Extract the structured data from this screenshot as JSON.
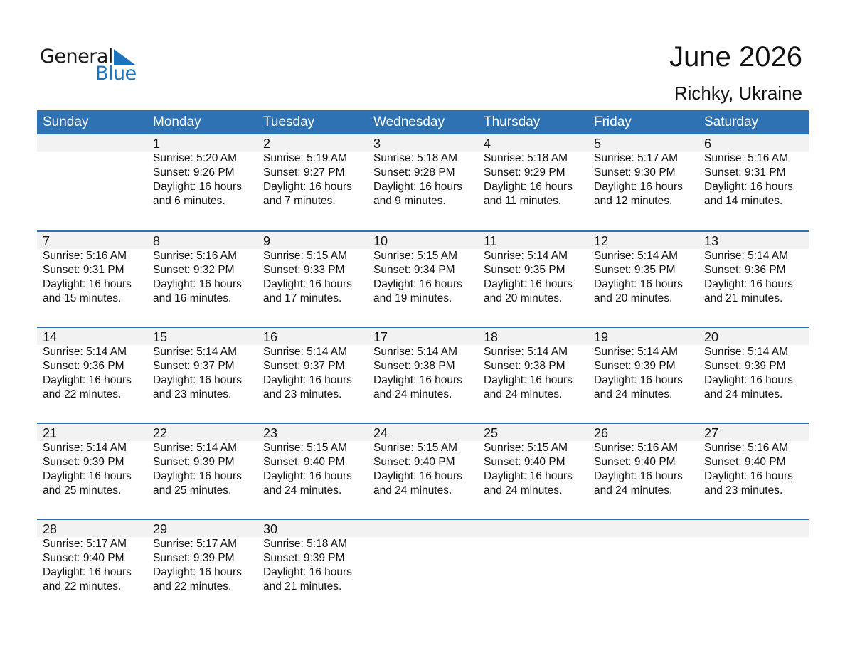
{
  "logo": {
    "general": "General",
    "blue": "Blue"
  },
  "title": "June 2026",
  "location": "Richky, Ukraine",
  "colors": {
    "header": "#2e72b4",
    "band": "#f2f2f2",
    "logo_blue": "#1c74c0"
  },
  "weekdays": [
    "Sunday",
    "Monday",
    "Tuesday",
    "Wednesday",
    "Thursday",
    "Friday",
    "Saturday"
  ],
  "weeks": [
    [
      null,
      {
        "day": "1",
        "sunrise": "Sunrise: 5:20 AM",
        "sunset": "Sunset: 9:26 PM",
        "daylight": "Daylight: 16 hours",
        "minutes": "and 6 minutes."
      },
      {
        "day": "2",
        "sunrise": "Sunrise: 5:19 AM",
        "sunset": "Sunset: 9:27 PM",
        "daylight": "Daylight: 16 hours",
        "minutes": "and 7 minutes."
      },
      {
        "day": "3",
        "sunrise": "Sunrise: 5:18 AM",
        "sunset": "Sunset: 9:28 PM",
        "daylight": "Daylight: 16 hours",
        "minutes": "and 9 minutes."
      },
      {
        "day": "4",
        "sunrise": "Sunrise: 5:18 AM",
        "sunset": "Sunset: 9:29 PM",
        "daylight": "Daylight: 16 hours",
        "minutes": "and 11 minutes."
      },
      {
        "day": "5",
        "sunrise": "Sunrise: 5:17 AM",
        "sunset": "Sunset: 9:30 PM",
        "daylight": "Daylight: 16 hours",
        "minutes": "and 12 minutes."
      },
      {
        "day": "6",
        "sunrise": "Sunrise: 5:16 AM",
        "sunset": "Sunset: 9:31 PM",
        "daylight": "Daylight: 16 hours",
        "minutes": "and 14 minutes."
      }
    ],
    [
      {
        "day": "7",
        "sunrise": "Sunrise: 5:16 AM",
        "sunset": "Sunset: 9:31 PM",
        "daylight": "Daylight: 16 hours",
        "minutes": "and 15 minutes."
      },
      {
        "day": "8",
        "sunrise": "Sunrise: 5:16 AM",
        "sunset": "Sunset: 9:32 PM",
        "daylight": "Daylight: 16 hours",
        "minutes": "and 16 minutes."
      },
      {
        "day": "9",
        "sunrise": "Sunrise: 5:15 AM",
        "sunset": "Sunset: 9:33 PM",
        "daylight": "Daylight: 16 hours",
        "minutes": "and 17 minutes."
      },
      {
        "day": "10",
        "sunrise": "Sunrise: 5:15 AM",
        "sunset": "Sunset: 9:34 PM",
        "daylight": "Daylight: 16 hours",
        "minutes": "and 19 minutes."
      },
      {
        "day": "11",
        "sunrise": "Sunrise: 5:14 AM",
        "sunset": "Sunset: 9:35 PM",
        "daylight": "Daylight: 16 hours",
        "minutes": "and 20 minutes."
      },
      {
        "day": "12",
        "sunrise": "Sunrise: 5:14 AM",
        "sunset": "Sunset: 9:35 PM",
        "daylight": "Daylight: 16 hours",
        "minutes": "and 20 minutes."
      },
      {
        "day": "13",
        "sunrise": "Sunrise: 5:14 AM",
        "sunset": "Sunset: 9:36 PM",
        "daylight": "Daylight: 16 hours",
        "minutes": "and 21 minutes."
      }
    ],
    [
      {
        "day": "14",
        "sunrise": "Sunrise: 5:14 AM",
        "sunset": "Sunset: 9:36 PM",
        "daylight": "Daylight: 16 hours",
        "minutes": "and 22 minutes."
      },
      {
        "day": "15",
        "sunrise": "Sunrise: 5:14 AM",
        "sunset": "Sunset: 9:37 PM",
        "daylight": "Daylight: 16 hours",
        "minutes": "and 23 minutes."
      },
      {
        "day": "16",
        "sunrise": "Sunrise: 5:14 AM",
        "sunset": "Sunset: 9:37 PM",
        "daylight": "Daylight: 16 hours",
        "minutes": "and 23 minutes."
      },
      {
        "day": "17",
        "sunrise": "Sunrise: 5:14 AM",
        "sunset": "Sunset: 9:38 PM",
        "daylight": "Daylight: 16 hours",
        "minutes": "and 24 minutes."
      },
      {
        "day": "18",
        "sunrise": "Sunrise: 5:14 AM",
        "sunset": "Sunset: 9:38 PM",
        "daylight": "Daylight: 16 hours",
        "minutes": "and 24 minutes."
      },
      {
        "day": "19",
        "sunrise": "Sunrise: 5:14 AM",
        "sunset": "Sunset: 9:39 PM",
        "daylight": "Daylight: 16 hours",
        "minutes": "and 24 minutes."
      },
      {
        "day": "20",
        "sunrise": "Sunrise: 5:14 AM",
        "sunset": "Sunset: 9:39 PM",
        "daylight": "Daylight: 16 hours",
        "minutes": "and 24 minutes."
      }
    ],
    [
      {
        "day": "21",
        "sunrise": "Sunrise: 5:14 AM",
        "sunset": "Sunset: 9:39 PM",
        "daylight": "Daylight: 16 hours",
        "minutes": "and 25 minutes."
      },
      {
        "day": "22",
        "sunrise": "Sunrise: 5:14 AM",
        "sunset": "Sunset: 9:39 PM",
        "daylight": "Daylight: 16 hours",
        "minutes": "and 25 minutes."
      },
      {
        "day": "23",
        "sunrise": "Sunrise: 5:15 AM",
        "sunset": "Sunset: 9:40 PM",
        "daylight": "Daylight: 16 hours",
        "minutes": "and 24 minutes."
      },
      {
        "day": "24",
        "sunrise": "Sunrise: 5:15 AM",
        "sunset": "Sunset: 9:40 PM",
        "daylight": "Daylight: 16 hours",
        "minutes": "and 24 minutes."
      },
      {
        "day": "25",
        "sunrise": "Sunrise: 5:15 AM",
        "sunset": "Sunset: 9:40 PM",
        "daylight": "Daylight: 16 hours",
        "minutes": "and 24 minutes."
      },
      {
        "day": "26",
        "sunrise": "Sunrise: 5:16 AM",
        "sunset": "Sunset: 9:40 PM",
        "daylight": "Daylight: 16 hours",
        "minutes": "and 24 minutes."
      },
      {
        "day": "27",
        "sunrise": "Sunrise: 5:16 AM",
        "sunset": "Sunset: 9:40 PM",
        "daylight": "Daylight: 16 hours",
        "minutes": "and 23 minutes."
      }
    ],
    [
      {
        "day": "28",
        "sunrise": "Sunrise: 5:17 AM",
        "sunset": "Sunset: 9:40 PM",
        "daylight": "Daylight: 16 hours",
        "minutes": "and 22 minutes."
      },
      {
        "day": "29",
        "sunrise": "Sunrise: 5:17 AM",
        "sunset": "Sunset: 9:39 PM",
        "daylight": "Daylight: 16 hours",
        "minutes": "and 22 minutes."
      },
      {
        "day": "30",
        "sunrise": "Sunrise: 5:18 AM",
        "sunset": "Sunset: 9:39 PM",
        "daylight": "Daylight: 16 hours",
        "minutes": "and 21 minutes."
      },
      null,
      null,
      null,
      null
    ]
  ]
}
